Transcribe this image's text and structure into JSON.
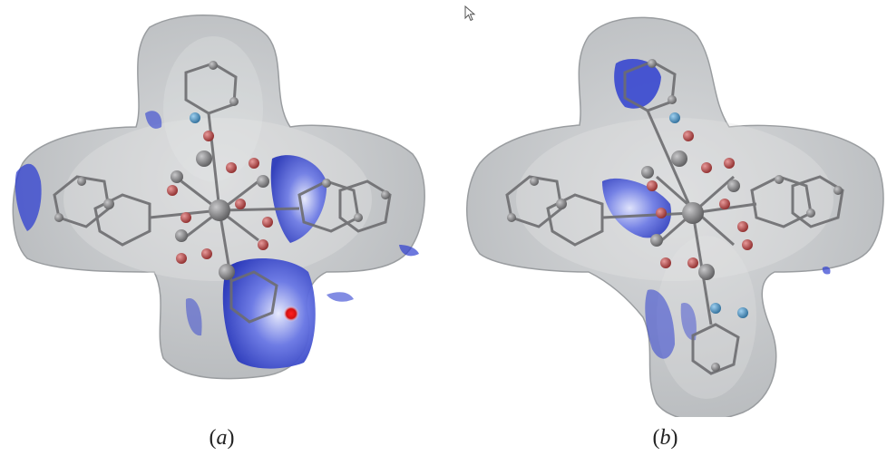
{
  "panels": [
    {
      "label_open": "(",
      "label_letter": "a",
      "label_close": ")"
    },
    {
      "label_open": "(",
      "label_letter": "b",
      "label_close": ")"
    }
  ],
  "colors": {
    "surface": "#c9cbcd",
    "surface_edge": "#8f9294",
    "carbon": "#7e7e80",
    "oxygen": "#b34a4a",
    "nitrogen": "#4d8fbf",
    "metal": "#b8babc",
    "hirshfeld_blue": "#2f3fd0",
    "hirshfeld_red": "#e01010"
  },
  "icons": [
    "mouse-cursor-icon"
  ]
}
